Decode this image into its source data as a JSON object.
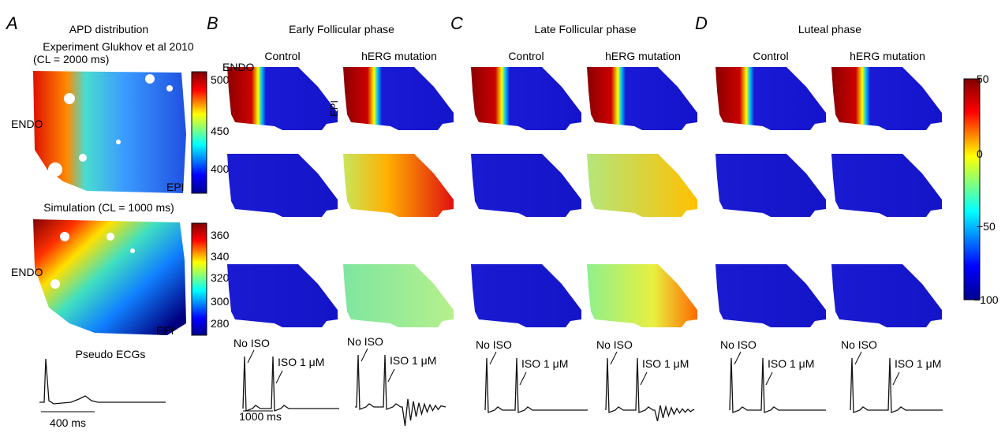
{
  "panel_a": {
    "label": "A",
    "title": "APD distribution",
    "experiment_title": "Experiment Glukhov et al 2010",
    "experiment_cl": "(CL = 2000 ms)",
    "simulation_title": "Simulation (CL = 1000 ms)",
    "endo": "ENDO",
    "epi": "EPI",
    "experiment_colorbar_ticks": [
      "500",
      "450",
      "400"
    ],
    "simulation_colorbar_ticks": [
      "360",
      "340",
      "320",
      "300",
      "280"
    ],
    "ecg_title": "Pseudo ECGs",
    "scale_bar": "400 ms"
  },
  "phases": [
    {
      "label": "B",
      "title": "Early Follicular phase",
      "control": "Control",
      "mutation": "hERG mutation"
    },
    {
      "label": "C",
      "title": "Late Follicular phase",
      "control": "Control",
      "mutation": "hERG mutation"
    },
    {
      "label": "D",
      "title": "Luteal phase",
      "control": "Control",
      "mutation": "hERG mutation"
    }
  ],
  "annotations": {
    "endo": "ENDO",
    "epi": "EPI",
    "no_iso": "No ISO",
    "iso": "ISO 1 μM",
    "scale_bar": "1000 ms"
  },
  "colorbar_ticks": [
    "50",
    "0",
    "−50",
    "−100"
  ]
}
